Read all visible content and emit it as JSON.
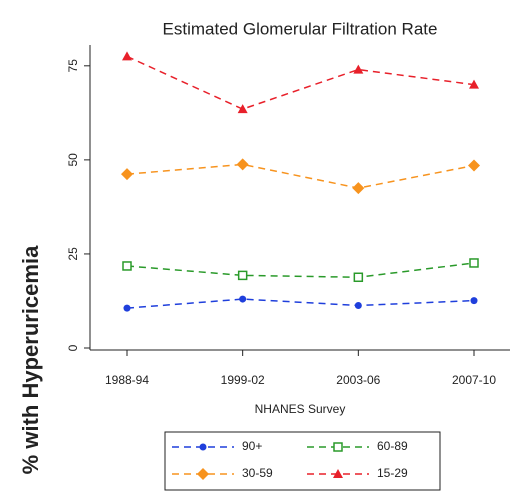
{
  "chart_data": {
    "type": "line",
    "title": "Estimated Glomerular Filtration Rate",
    "x_label": "NHANES Survey",
    "y_label": "% with Hyperuricemia",
    "categories": [
      "1988-94",
      "1999-02",
      "2003-06",
      "2007-10"
    ],
    "series": [
      {
        "name": "90+",
        "color": "#1f3fdc",
        "marker": "circle",
        "values": [
          10.6,
          13,
          11.3,
          12.6
        ]
      },
      {
        "name": "60-89",
        "color": "#2a9a2a",
        "marker": "square-open",
        "values": [
          21.8,
          19.3,
          18.8,
          22.6
        ]
      },
      {
        "name": "30-59",
        "color": "#f7931e",
        "marker": "diamond",
        "values": [
          46.2,
          48.8,
          42.5,
          48.5
        ]
      },
      {
        "name": "15-29",
        "color": "#e8202a",
        "marker": "triangle",
        "values": [
          77.5,
          63.5,
          74,
          70
        ]
      }
    ],
    "ylim": [
      0,
      80
    ],
    "yticks": [
      0,
      25,
      50,
      75
    ],
    "grid": false,
    "legend": "bottom"
  }
}
